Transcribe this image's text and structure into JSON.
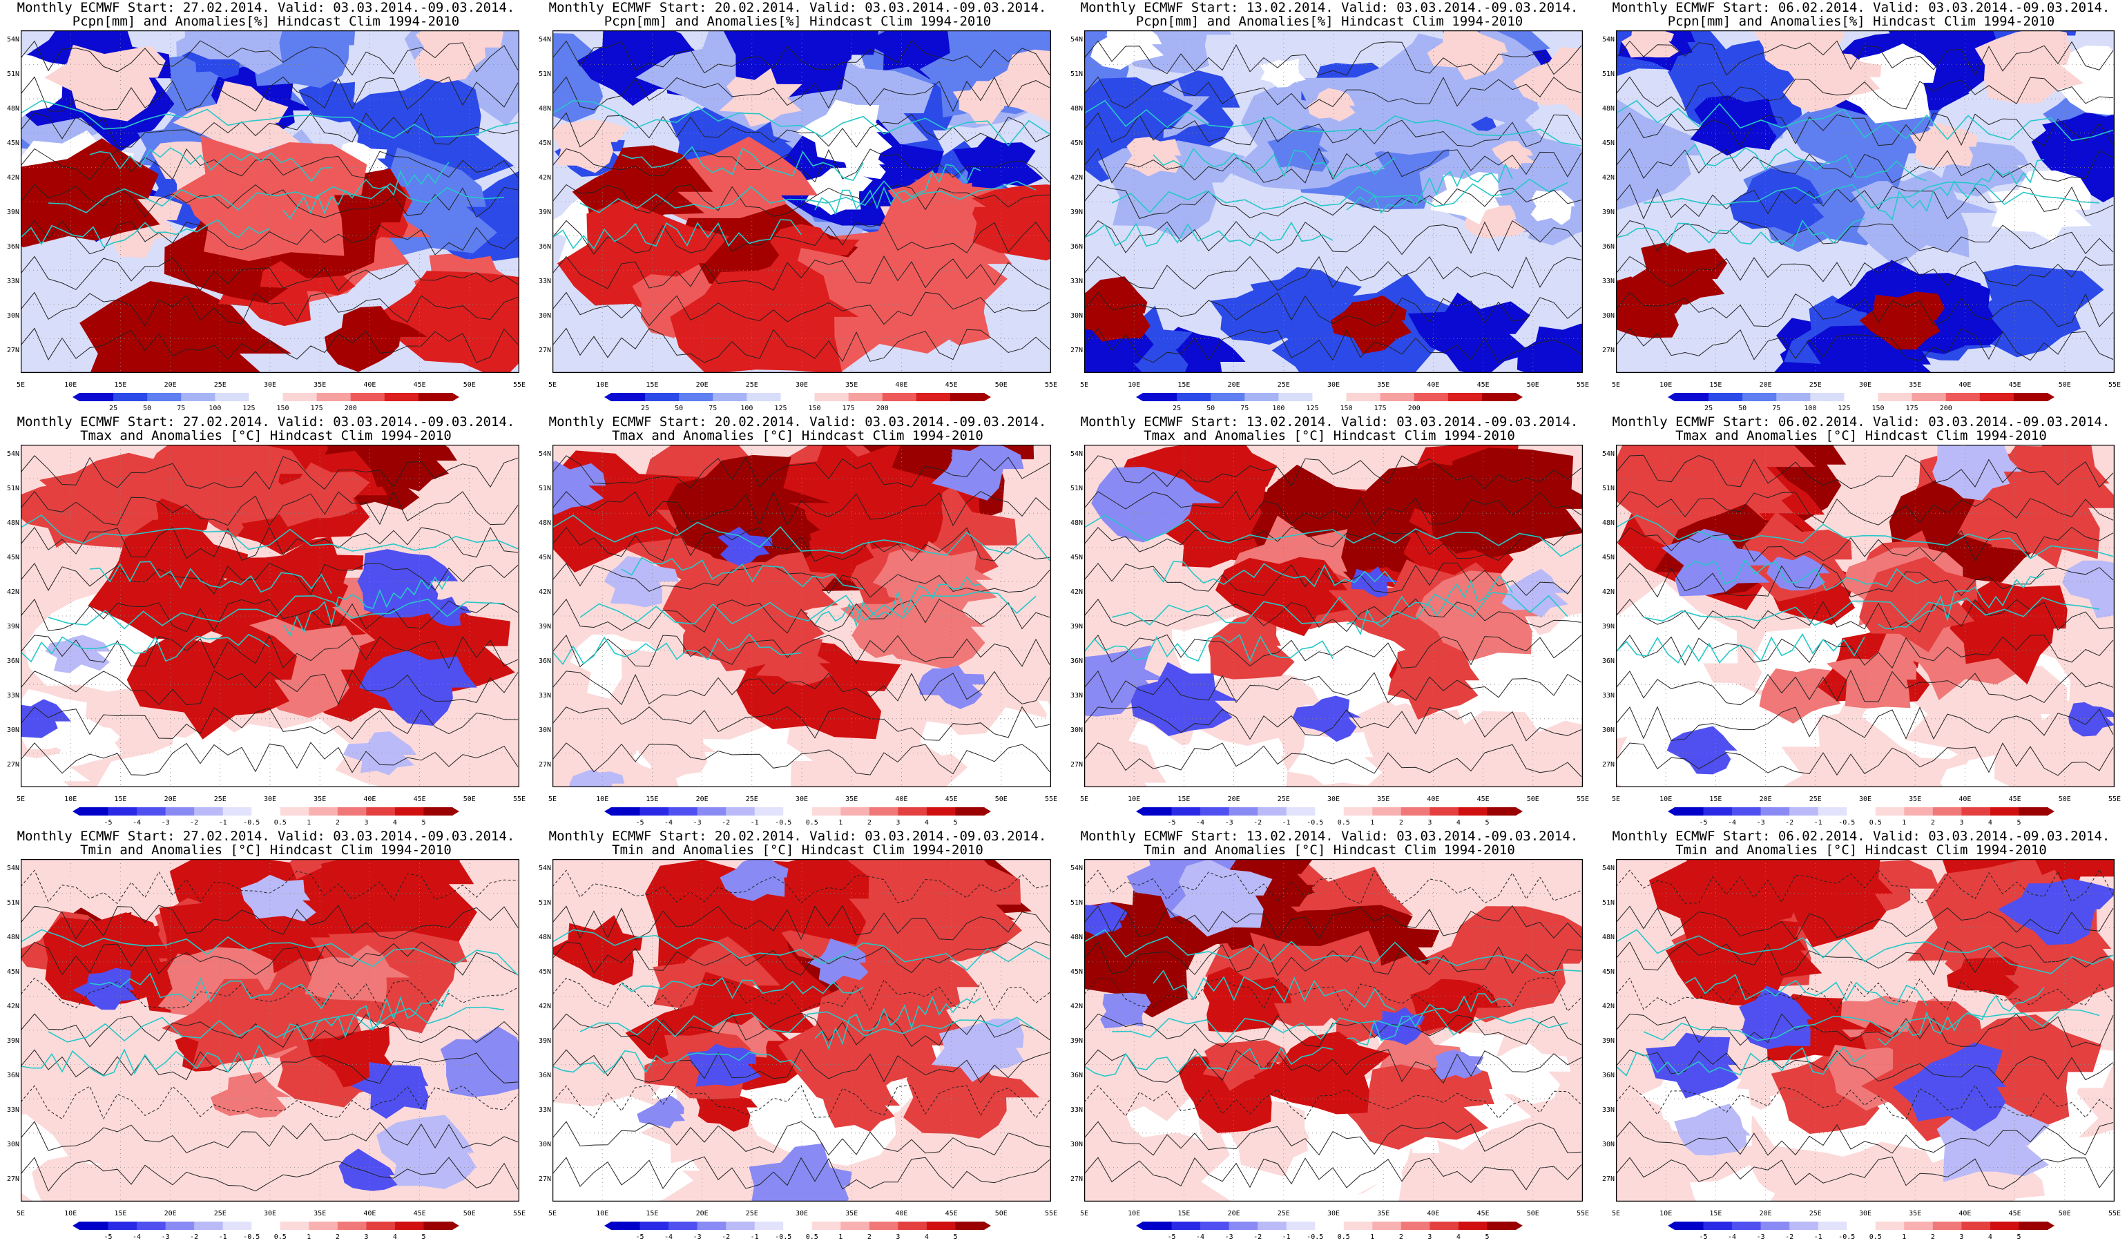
{
  "rows": [
    {
      "variable": "precip",
      "subtitle": "Pcpn[mm] and Anomalies[%] Hindcast Clim 1994-2010",
      "colorbar_labels": [
        "25",
        "50",
        "75",
        "100",
        "125",
        "150",
        "175",
        "200"
      ]
    },
    {
      "variable": "tmax",
      "subtitle": "Tmax and Anomalies [°C] Hindcast Clim 1994-2010",
      "colorbar_labels": [
        "-5",
        "-4",
        "-3",
        "-2",
        "-1",
        "-0.5",
        "0.5",
        "1",
        "2",
        "3",
        "4",
        "5"
      ]
    },
    {
      "variable": "tmin",
      "subtitle": "Tmin and Anomalies [°C] Hindcast Clim 1994-2010",
      "colorbar_labels": [
        "-5",
        "-4",
        "-3",
        "-2",
        "-1",
        "-0.5",
        "0.5",
        "1",
        "2",
        "3",
        "4",
        "5"
      ]
    }
  ],
  "columns": [
    {
      "title": "Monthly ECMWF Start: 27.02.2014. Valid: 03.03.2014.-09.03.2014."
    },
    {
      "title": "Monthly ECMWF Start: 20.02.2014. Valid: 03.03.2014.-09.03.2014."
    },
    {
      "title": "Monthly ECMWF Start: 13.02.2014. Valid: 03.03.2014.-09.03.2014."
    },
    {
      "title": "Monthly ECMWF Start: 06.02.2014. Valid: 03.03.2014.-09.03.2014."
    }
  ],
  "lat_labels": [
    "54N",
    "51N",
    "48N",
    "45N",
    "42N",
    "39N",
    "36N",
    "33N",
    "30N",
    "27N"
  ],
  "lon_labels": [
    "5E",
    "10E",
    "15E",
    "20E",
    "25E",
    "30E",
    "35E",
    "40E",
    "45E",
    "50E",
    "55E"
  ],
  "colors": {
    "precip_scale": [
      "#0a0ad2",
      "#2c4ae8",
      "#5f7ef0",
      "#a6b4f6",
      "#d8ddfa",
      "#ffffff",
      "#fbd4d4",
      "#f6a0a0",
      "#ee5a5a",
      "#dc1e1e",
      "#a50000"
    ],
    "temp_scale": [
      "#0000c8",
      "#2a2ae6",
      "#5050f0",
      "#8a8af5",
      "#babaf8",
      "#e2e2fc",
      "#ffffff",
      "#fcdada",
      "#f9b0b0",
      "#f07878",
      "#e44040",
      "#d01010",
      "#9a0000"
    ],
    "coast": "#26c8c8",
    "contour": "#222222"
  }
}
